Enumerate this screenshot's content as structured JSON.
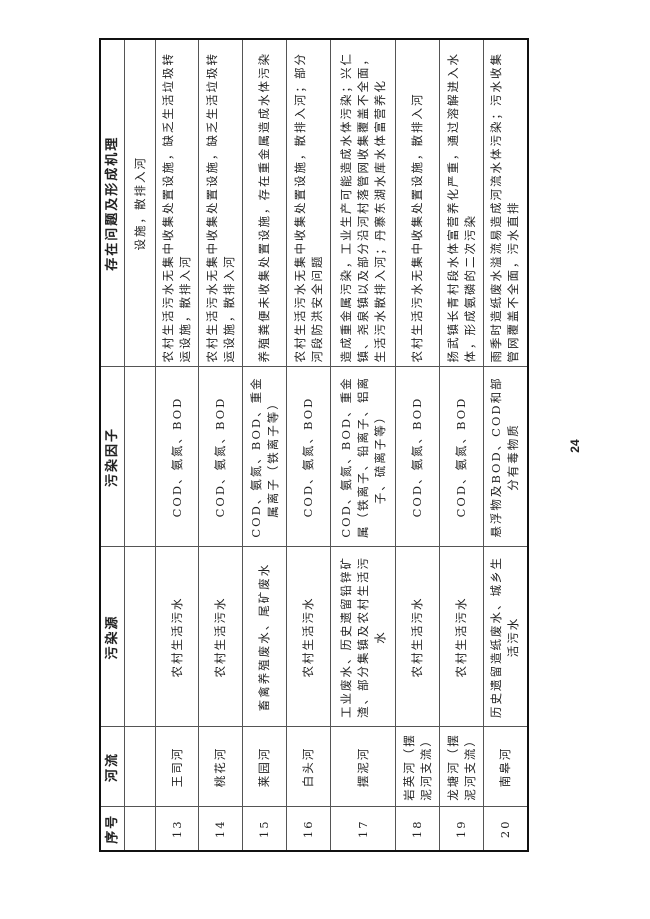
{
  "headers": [
    "序号",
    "河流",
    "污染源",
    "污染因子",
    "存在问题及形成机理"
  ],
  "rows": [
    {
      "no": "",
      "river": "",
      "source": "",
      "factor": "",
      "issue": "设施，散排入河"
    },
    {
      "no": "13",
      "river": "王司河",
      "source": "农村生活污水",
      "factor": "COD、氨氮、BOD",
      "issue": "农村生活污水无集中收集处置设施，缺乏生活垃圾转运设施，散排入河"
    },
    {
      "no": "14",
      "river": "桃花河",
      "source": "农村生活污水",
      "factor": "COD、氨氮、BOD",
      "issue": "农村生活污水无集中收集处置设施，缺乏生活垃圾转运设施，散排入河"
    },
    {
      "no": "15",
      "river": "莱园河",
      "source": "畜禽养殖废水、尾矿废水",
      "factor": "COD、氨氮、BOD、重金属离子（铁离子等）",
      "issue": "养殖粪便未收集处置设施，存在重金属造成水体污染"
    },
    {
      "no": "16",
      "river": "白头河",
      "source": "农村生活污水",
      "factor": "COD、氨氮、BOD",
      "issue": "农村生活污水无集中收集处置设施，散排入河；部分河段防洪安全问题"
    },
    {
      "no": "17",
      "river": "摆泥河",
      "source": "工业废水、历史遗留铅锌矿渣、部分集镇及农村生活污水",
      "factor": "COD、氨氮、BOD、重金属（铁离子、铅离子、铝离子、硫离子等）",
      "issue": "造成重金属污染，工业生产可能造成水体污染；兴仁镇、尧泉镇以及部分沿河村落管网收集覆盖不全面，生活污水散排入河；丹寨东湖水库水体富营养化"
    },
    {
      "no": "18",
      "river": "岩英河（摆泥河支流）",
      "source": "农村生活污水",
      "factor": "COD、氨氮、BOD",
      "issue": "农村生活污水无集中收集处置设施，散排入河"
    },
    {
      "no": "19",
      "river": "龙塘河（摆泥河支流）",
      "source": "农村生活污水",
      "factor": "COD、氨氮、BOD",
      "issue": "扬武镇长青村段水体富营养化严重，通过溶解进入水体，形成氨磷的二次污染"
    },
    {
      "no": "20",
      "river": "南皋河",
      "source": "历史遗留造纸废水、城乡生活污水",
      "factor": "悬浮物及BOD、COD和部分有毒物质",
      "issue": "雨季时造纸废水溢流易造成河流水体污染；污水收集管网覆盖不全面，污水直排"
    }
  ],
  "page_number": "24"
}
